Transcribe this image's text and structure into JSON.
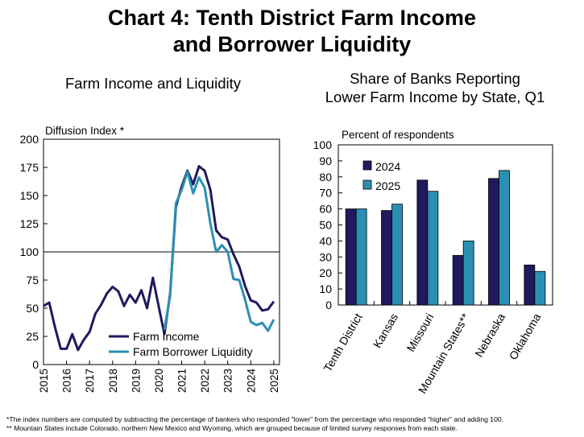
{
  "title_line1": "Chart 4: Tenth District Farm Income",
  "title_line2": "and Borrower Liquidity",
  "footnote1": "*The index numbers are computed by subtracting the percentage of bankers who responded \"lower\" from the percentage who responded \"higher\" and adding 100.",
  "footnote2": "** Mountain States include Colorado, northern New Mexico and Wyoming, which are grouped because of limited survey responses from each state.",
  "colors": {
    "farm_income": "#1f1a5e",
    "farm_liquidity": "#2b8fb3",
    "bar_2024": "#1f1a5e",
    "bar_2025": "#2b8fb3"
  },
  "chart_data": [
    {
      "type": "line",
      "title": "Farm Income and Liquidity",
      "ylabel": "Diffusion Index *",
      "ylim": [
        0,
        200
      ],
      "yticks": [
        "0",
        "25",
        "50",
        "75",
        "100",
        "125",
        "150",
        "175",
        "200"
      ],
      "xticks": [
        "2015",
        "2016",
        "2017",
        "2018",
        "2019",
        "2020",
        "2021",
        "2022",
        "2023",
        "2024",
        "2025"
      ],
      "xlim": [
        2015.0,
        2025.25
      ],
      "reference_line": 100,
      "grid": false,
      "legend_position": "bottom-center",
      "series": [
        {
          "name": "Farm Income",
          "x": [
            2015.0,
            2015.25,
            2015.5,
            2015.75,
            2016.0,
            2016.25,
            2016.5,
            2016.75,
            2017.0,
            2017.25,
            2017.5,
            2017.75,
            2018.0,
            2018.25,
            2018.5,
            2018.75,
            2019.0,
            2019.25,
            2019.5,
            2019.75,
            2020.0,
            2020.25,
            2020.5,
            2020.75,
            2021.0,
            2021.25,
            2021.5,
            2021.75,
            2022.0,
            2022.25,
            2022.5,
            2022.75,
            2023.0,
            2023.25,
            2023.5,
            2023.75,
            2024.0,
            2024.25,
            2024.5,
            2024.75,
            2025.0
          ],
          "values": [
            52,
            55,
            33,
            14,
            14,
            27,
            13,
            22,
            29,
            45,
            53,
            63,
            69,
            65,
            52,
            62,
            55,
            66,
            50,
            77,
            52,
            27,
            63,
            140,
            158,
            172,
            160,
            176,
            172,
            155,
            119,
            113,
            111,
            98,
            87,
            70,
            57,
            55,
            48,
            49,
            56
          ]
        },
        {
          "name": "Farm Borrower Liquidity",
          "x": [
            2020.25,
            2020.5,
            2020.75,
            2021.0,
            2021.25,
            2021.5,
            2021.75,
            2022.0,
            2022.25,
            2022.5,
            2022.75,
            2023.0,
            2023.25,
            2023.5,
            2023.75,
            2024.0,
            2024.25,
            2024.5,
            2024.75,
            2025.0
          ],
          "values": [
            31,
            61,
            143,
            155,
            171,
            152,
            166,
            157,
            125,
            100,
            106,
            100,
            76,
            75,
            58,
            38,
            35,
            37,
            30,
            40
          ]
        }
      ]
    },
    {
      "type": "bar",
      "title": "Share of Banks Reporting Lower Farm Income by State, Q1",
      "ylabel": "Percent of respondents",
      "ylim": [
        0,
        100
      ],
      "yticks": [
        "0",
        "10",
        "20",
        "30",
        "40",
        "50",
        "60",
        "70",
        "80",
        "90",
        "100"
      ],
      "categories": [
        "Tenth District",
        "Kansas",
        "Missouri",
        "Mountain States**",
        "Nebraska",
        "Oklahoma"
      ],
      "grid": false,
      "legend_position": "top-left",
      "series": [
        {
          "name": "2024",
          "values": [
            60,
            59,
            78,
            31,
            79,
            25
          ]
        },
        {
          "name": "2025",
          "values": [
            60,
            63,
            71,
            40,
            84,
            21
          ]
        }
      ]
    }
  ]
}
